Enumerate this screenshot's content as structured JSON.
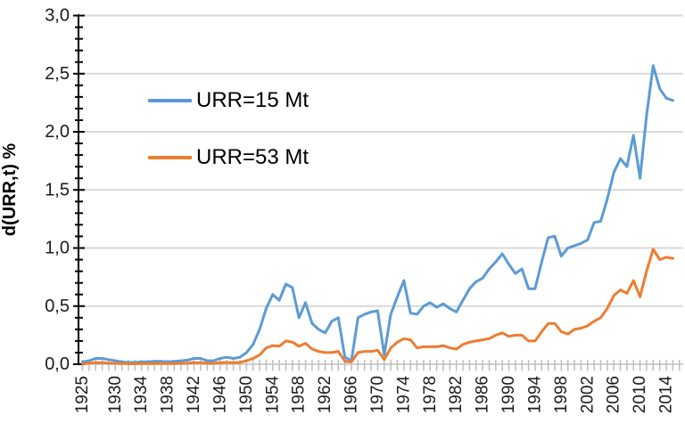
{
  "chart_data": {
    "type": "line",
    "title": "",
    "xlabel": "",
    "ylabel": "d(URR,t) %",
    "x_start": 1925,
    "x_end": 2015,
    "x_step": 1,
    "ylim": [
      0.0,
      3.0
    ],
    "y_tick_step": 0.5,
    "y_minor_tick_step": 0.1,
    "decimal_separator": ",",
    "grid": "horizontal-major",
    "legend_position": "inside-top-left",
    "grid_color": "#D9D9D9",
    "axis_color": "#000000",
    "x_tick_color": "#BFBFBF",
    "label_color": "#1a1a1a",
    "y_tick_labels": [
      "0,0",
      "0,5",
      "1,0",
      "1,5",
      "2,0",
      "2,5",
      "3,0"
    ],
    "x_tick_labels": [
      "1925",
      "1930",
      "1934",
      "1938",
      "1942",
      "1946",
      "1950",
      "1954",
      "1958",
      "1962",
      "1966",
      "1970",
      "1974",
      "1978",
      "1982",
      "1986",
      "1990",
      "1994",
      "1998",
      "2002",
      "2006",
      "2010",
      "2014"
    ],
    "series": [
      {
        "name": "URR=15 Mt",
        "color": "#5B9BD5",
        "values": [
          0.02,
          0.03,
          0.05,
          0.05,
          0.04,
          0.03,
          0.02,
          0.015,
          0.015,
          0.02,
          0.02,
          0.025,
          0.025,
          0.02,
          0.025,
          0.03,
          0.035,
          0.05,
          0.05,
          0.03,
          0.03,
          0.05,
          0.06,
          0.05,
          0.06,
          0.1,
          0.17,
          0.3,
          0.48,
          0.6,
          0.55,
          0.69,
          0.66,
          0.4,
          0.53,
          0.35,
          0.3,
          0.27,
          0.37,
          0.4,
          0.06,
          0.03,
          0.4,
          0.43,
          0.45,
          0.46,
          0.08,
          0.43,
          0.58,
          0.72,
          0.44,
          0.43,
          0.5,
          0.53,
          0.49,
          0.52,
          0.48,
          0.45,
          0.55,
          0.65,
          0.71,
          0.74,
          0.82,
          0.88,
          0.95,
          0.86,
          0.78,
          0.82,
          0.65,
          0.65,
          0.88,
          1.09,
          1.1,
          0.93,
          1.0,
          1.02,
          1.04,
          1.07,
          1.22,
          1.23,
          1.42,
          1.65,
          1.77,
          1.7,
          1.97,
          1.6,
          2.14,
          2.57,
          2.37,
          2.29,
          2.27
        ]
      },
      {
        "name": "URR=53 Mt",
        "color": "#ED7D31",
        "values": [
          0.005,
          0.008,
          0.013,
          0.013,
          0.01,
          0.008,
          0.005,
          0.004,
          0.004,
          0.005,
          0.005,
          0.006,
          0.006,
          0.005,
          0.006,
          0.008,
          0.009,
          0.013,
          0.013,
          0.008,
          0.008,
          0.013,
          0.015,
          0.013,
          0.015,
          0.03,
          0.05,
          0.08,
          0.14,
          0.16,
          0.155,
          0.2,
          0.19,
          0.155,
          0.18,
          0.13,
          0.11,
          0.1,
          0.1,
          0.11,
          0.025,
          0.02,
          0.1,
          0.11,
          0.11,
          0.12,
          0.04,
          0.14,
          0.19,
          0.22,
          0.21,
          0.14,
          0.15,
          0.15,
          0.15,
          0.16,
          0.14,
          0.13,
          0.17,
          0.19,
          0.2,
          0.21,
          0.22,
          0.25,
          0.27,
          0.24,
          0.25,
          0.25,
          0.2,
          0.2,
          0.28,
          0.35,
          0.35,
          0.28,
          0.26,
          0.3,
          0.31,
          0.33,
          0.37,
          0.4,
          0.48,
          0.59,
          0.64,
          0.61,
          0.72,
          0.58,
          0.8,
          0.99,
          0.9,
          0.92,
          0.91
        ]
      }
    ]
  }
}
